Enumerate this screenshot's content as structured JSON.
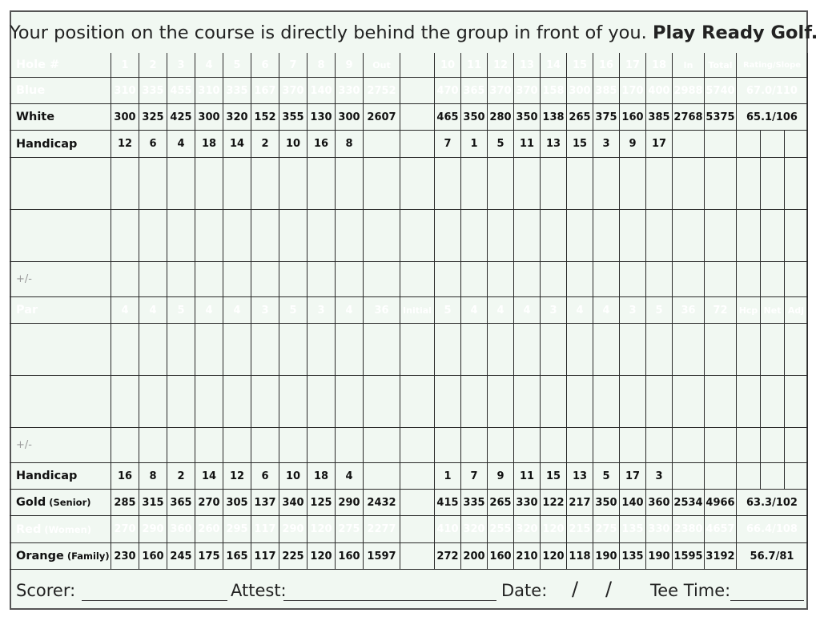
{
  "banner": {
    "text": "Your position on the course is directly behind the group in front of you.",
    "bold": "Play Ready Golf."
  },
  "rows": [
    {
      "key": "hole",
      "label": "Hole #",
      "style": "row-hole",
      "top": 66,
      "h": 31,
      "cells": [
        "1",
        "2",
        "3",
        "4",
        "5",
        "6",
        "7",
        "8",
        "9",
        "Out",
        "",
        "10",
        "11",
        "12",
        "13",
        "14",
        "15",
        "16",
        "17",
        "18",
        "In",
        "Total",
        "Rating/Slope"
      ]
    },
    {
      "key": "blue",
      "label": "Blue",
      "style": "row-blue",
      "top": 97,
      "h": 33,
      "cells": [
        "310",
        "335",
        "455",
        "310",
        "335",
        "167",
        "370",
        "140",
        "330",
        "2752",
        "",
        "470",
        "365",
        "370",
        "370",
        "158",
        "300",
        "385",
        "170",
        "400",
        "2988",
        "5740",
        "67.0/110"
      ]
    },
    {
      "key": "white",
      "label": "White",
      "style": "row-white",
      "top": 130,
      "h": 33,
      "cells": [
        "300",
        "325",
        "425",
        "300",
        "320",
        "152",
        "355",
        "130",
        "300",
        "2607",
        "",
        "465",
        "350",
        "280",
        "350",
        "138",
        "265",
        "375",
        "160",
        "385",
        "2768",
        "5375",
        "65.1/106"
      ]
    },
    {
      "key": "handicap1",
      "label": "Handicap",
      "style": "row-hcp",
      "top": 163,
      "h": 34,
      "cells": [
        "12",
        "6",
        "4",
        "18",
        "14",
        "2",
        "10",
        "16",
        "8",
        "",
        "",
        "7",
        "1",
        "5",
        "11",
        "13",
        "15",
        "3",
        "9",
        "17",
        "",
        "",
        "",
        "",
        ""
      ]
    },
    {
      "key": "blank1",
      "label": "",
      "style": "row-blank",
      "top": 197,
      "h": 65,
      "cells": []
    },
    {
      "key": "blank2",
      "label": "",
      "style": "row-blank",
      "top": 262,
      "h": 65,
      "cells": []
    },
    {
      "key": "plusminus1",
      "label": "+/-",
      "style": "row-blank",
      "top": 327,
      "h": 44,
      "cells": []
    },
    {
      "key": "par",
      "label": "Par",
      "style": "row-par",
      "top": 371,
      "h": 33,
      "cells": [
        "4",
        "4",
        "5",
        "4",
        "4",
        "3",
        "5",
        "3",
        "4",
        "36",
        "Initial",
        "5",
        "4",
        "4",
        "4",
        "3",
        "4",
        "4",
        "3",
        "5",
        "36",
        "72",
        "Hcp",
        "Net",
        "Adj"
      ]
    },
    {
      "key": "blank3",
      "label": "",
      "style": "row-blank",
      "top": 404,
      "h": 65,
      "cells": []
    },
    {
      "key": "blank4",
      "label": "",
      "style": "row-blank",
      "top": 469,
      "h": 65,
      "cells": []
    },
    {
      "key": "plusminus2",
      "label": "+/-",
      "style": "row-blank",
      "top": 534,
      "h": 44,
      "cells": []
    },
    {
      "key": "handicap2",
      "label": "Handicap",
      "style": "row-hcp",
      "top": 578,
      "h": 33,
      "cells": [
        "16",
        "8",
        "2",
        "14",
        "12",
        "6",
        "10",
        "18",
        "4",
        "",
        "",
        "1",
        "7",
        "9",
        "11",
        "15",
        "13",
        "5",
        "17",
        "3",
        "",
        "",
        "",
        "",
        ""
      ]
    },
    {
      "key": "gold",
      "label": "Gold",
      "sub": "(Senior)",
      "style": "row-gold",
      "top": 611,
      "h": 33,
      "cells": [
        "285",
        "315",
        "365",
        "270",
        "305",
        "137",
        "340",
        "125",
        "290",
        "2432",
        "",
        "415",
        "335",
        "265",
        "330",
        "122",
        "217",
        "350",
        "140",
        "360",
        "2534",
        "4966",
        "63.3/102"
      ]
    },
    {
      "key": "red",
      "label": "Red",
      "sub": "(Women)",
      "style": "row-red",
      "top": 644,
      "h": 34,
      "cells": [
        "270",
        "290",
        "360",
        "260",
        "295",
        "117",
        "290",
        "120",
        "275",
        "2277",
        "",
        "410",
        "320",
        "255",
        "320",
        "120",
        "215",
        "275",
        "135",
        "330",
        "2380",
        "4657",
        "66.4/108"
      ]
    },
    {
      "key": "orange",
      "label": "Orange",
      "sub": "(Family)",
      "style": "row-orange",
      "top": 678,
      "h": 33,
      "cells": [
        "230",
        "160",
        "245",
        "175",
        "165",
        "117",
        "225",
        "120",
        "160",
        "1597",
        "",
        "272",
        "200",
        "160",
        "210",
        "120",
        "118",
        "190",
        "135",
        "190",
        "1595",
        "3192",
        "56.7/81"
      ]
    }
  ],
  "footer": {
    "scorer": "Scorer:",
    "attest": "Attest:",
    "date": "Date:",
    "slash1": "/",
    "slash2": "/",
    "tee_time": "Tee Time:"
  }
}
